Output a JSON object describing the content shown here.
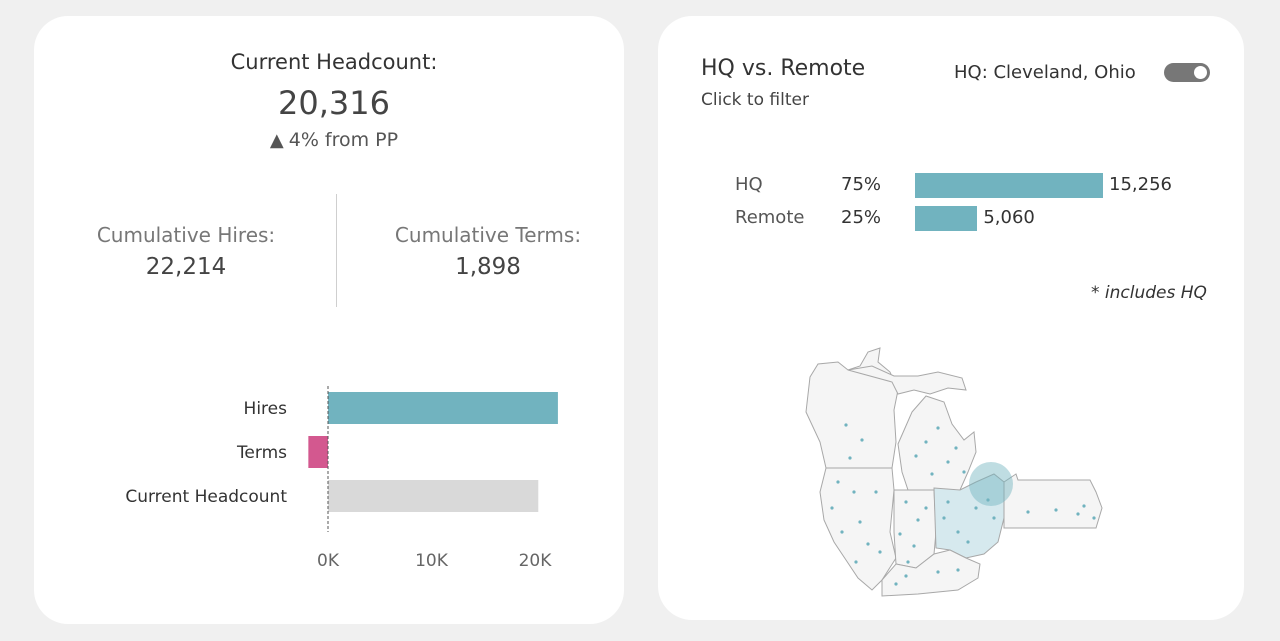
{
  "headcount": {
    "title": "Current Headcount:",
    "value": "20,316",
    "change_text": "4% from PP",
    "change_arrow": "▲"
  },
  "cumulative": {
    "hires_label": "Cumulative Hires:",
    "hires_value": "22,214",
    "terms_label": "Cumulative Terms:",
    "terms_value": "1,898"
  },
  "colors": {
    "hires": "#71b3bf",
    "terms": "#d3588f",
    "headcount": "#d9d9d9",
    "hq": "#71b3bf"
  },
  "chart_data": {
    "type": "bar",
    "orientation": "horizontal",
    "categories": [
      "Hires",
      "Terms",
      "Current Headcount"
    ],
    "values": [
      22214,
      -1898,
      20316
    ],
    "xlim": [
      -2000,
      24000
    ],
    "xticks": [
      "0K",
      "10K",
      "20K"
    ],
    "xtick_values": [
      0,
      10000,
      20000
    ]
  },
  "hq_remote": {
    "title": "HQ vs. Remote",
    "subtitle": "Click to filter",
    "location_label": "HQ: Cleveland, Ohio",
    "toggle_on": true,
    "rows": [
      {
        "label": "HQ",
        "pct": "75%",
        "value": "15,256",
        "num": 15256
      },
      {
        "label": "Remote",
        "pct": "25%",
        "value": "5,060",
        "num": 5060
      }
    ],
    "note": "* includes HQ"
  },
  "map": {
    "states": [
      "Wisconsin",
      "Michigan",
      "Illinois",
      "Indiana",
      "Ohio",
      "Kentucky",
      "Pennsylvania"
    ],
    "highlighted_state": "Ohio"
  }
}
